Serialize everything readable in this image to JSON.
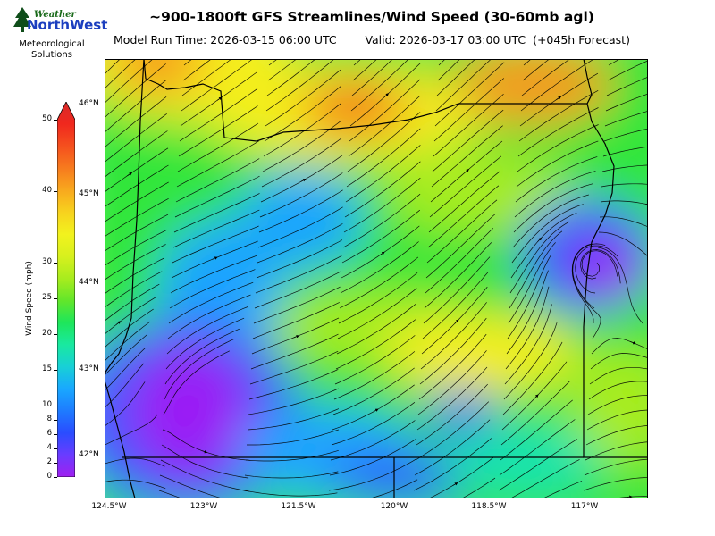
{
  "logo": {
    "word_top": "Weather",
    "word_main": "NorthWest",
    "tagline_1": "Meteorological",
    "tagline_2": "Solutions"
  },
  "title": "~900-1800ft GFS Streamlines/Wind Speed (30-60mb agl)",
  "model_run": "Model Run Time: 2026-03-15 06:00 UTC",
  "valid": "Valid: 2026-03-17 03:00 UTC  (+045h Forecast)",
  "colorbar": {
    "label": "Wind Speed (mph)",
    "ticks": [
      "0",
      "2",
      "4",
      "6",
      "8",
      "10",
      "15",
      "20",
      "25",
      "30",
      "40",
      "50"
    ],
    "tick_values": [
      0,
      2,
      4,
      6,
      8,
      10,
      15,
      20,
      25,
      30,
      40,
      50
    ],
    "colors": [
      "#a020f0",
      "#6a3cff",
      "#2a4dff",
      "#1e7bff",
      "#19a8ff",
      "#18d0d6",
      "#19e9a0",
      "#1ee65a",
      "#63e62a",
      "#a8ec1e",
      "#d7f01e",
      "#f2f21e",
      "#f7d21e",
      "#f8a81e",
      "#f77a1e",
      "#f5501e",
      "#f0281e",
      "#d82a2a"
    ]
  },
  "map": {
    "lat_labels": [
      "46°N",
      "45°N",
      "44°N",
      "43°N",
      "42°N"
    ],
    "lon_labels": [
      "124.5°W",
      "123°W",
      "121.5°W",
      "120°W",
      "118.5°W",
      "117°W"
    ],
    "field_colors": {
      "calm": "#9a1ef5",
      "weak": "#2f5cff",
      "light": "#1fa4ff",
      "moderate": "#19e3b0",
      "breezy": "#33e63a",
      "fresh": "#a8ec1e",
      "strong": "#f4ee1e",
      "gusty": "#f59a1e",
      "peak": "#f4641e"
    }
  }
}
